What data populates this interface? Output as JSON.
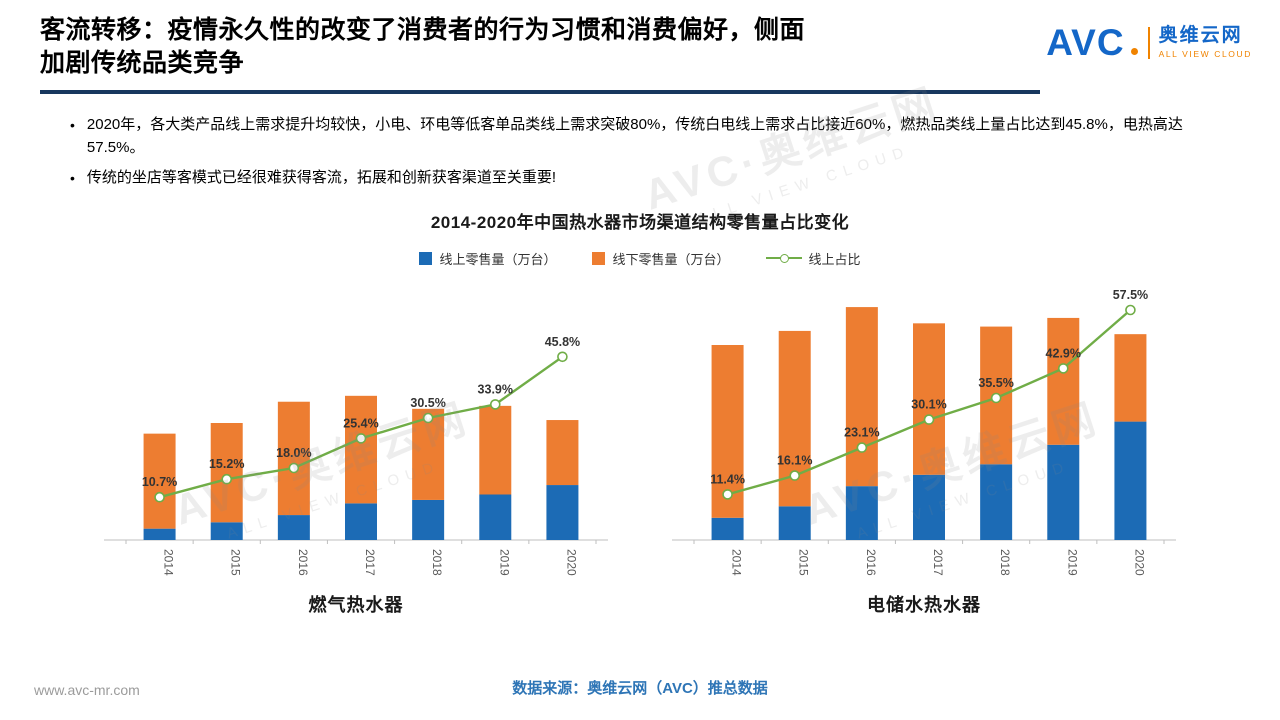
{
  "slide": {
    "title_line1": "客流转移：疫情永久性的改变了消费者的行为习惯和消费偏好，侧面",
    "title_line2": "加剧传统品类竞争",
    "bullets": [
      "2020年，各大类产品线上需求提升均较快，小电、环电等低客单品类线上需求突破80%，传统白电线上需求占比接近60%，燃热品类线上量占比达到45.8%，电热高达57.5%。",
      "传统的坐店等客模式已经很难获得客流，拓展和创新获客渠道至关重要!"
    ],
    "footer_url": "www.avc-mr.com",
    "source_note": "数据来源：奥维云网（AVC）推总数据"
  },
  "logo": {
    "abbr": "AVC",
    "cn": "奥维云网",
    "en": "ALL VIEW CLOUD"
  },
  "watermark": {
    "main": "AVC·奥维云网",
    "sub": "ALL VIEW CLOUD"
  },
  "colors": {
    "online_blue": "#1C6BB5",
    "offline_orange": "#ED7D31",
    "ratio_green": "#70AD47",
    "title_underline": "#17375E",
    "source_blue": "#2E75B6"
  },
  "chart": {
    "title": "2014-2020年中国热水器市场渠道结构零售量占比变化",
    "legend": [
      {
        "label": "线上零售量（万台）",
        "color": "#1C6BB5",
        "type": "square"
      },
      {
        "label": "线下零售量（万台）",
        "color": "#ED7D31",
        "type": "square"
      },
      {
        "label": "线上占比",
        "color": "#70AD47",
        "type": "line"
      }
    ]
  },
  "chart_data": [
    {
      "type": "bar-line",
      "title": "燃气热水器",
      "categories": [
        "2014",
        "2015",
        "2016",
        "2017",
        "2018",
        "2019",
        "2020"
      ],
      "series": [
        {
          "name": "线上零售量（万台）",
          "color": "#1C6BB5",
          "values": [
            96,
            150,
            211,
            310,
            339,
            385,
            465
          ]
        },
        {
          "name": "线下零售量（万台）",
          "color": "#ED7D31",
          "values": [
            804,
            840,
            959,
            910,
            771,
            750,
            550
          ]
        }
      ],
      "line": {
        "name": "线上占比",
        "color": "#70AD47",
        "values": [
          10.7,
          15.2,
          18.0,
          25.4,
          30.5,
          33.9,
          45.8
        ],
        "labels": [
          "10.7%",
          "15.2%",
          "18.0%",
          "25.4%",
          "30.5%",
          "33.9%",
          "45.8%"
        ]
      },
      "ylim": [
        0,
        2200
      ],
      "pct_ylim": [
        0,
        65
      ],
      "grid": false,
      "legend_position": "top"
    },
    {
      "type": "bar-line",
      "title": "电储水热水器",
      "categories": [
        "2014",
        "2015",
        "2016",
        "2017",
        "2018",
        "2019",
        "2020"
      ],
      "series": [
        {
          "name": "线上零售量（万台）",
          "color": "#1C6BB5",
          "values": [
            205,
            311,
            497,
            602,
            699,
            879,
            1093
          ]
        },
        {
          "name": "线下零售量（万台）",
          "color": "#ED7D31",
          "values": [
            1595,
            1619,
            1653,
            1398,
            1271,
            1171,
            807
          ]
        }
      ],
      "line": {
        "name": "线上占比",
        "color": "#70AD47",
        "values": [
          11.4,
          16.1,
          23.1,
          30.1,
          35.5,
          42.9,
          57.5
        ],
        "labels": [
          "11.4%",
          "16.1%",
          "23.1%",
          "30.1%",
          "35.5%",
          "42.9%",
          "57.5%"
        ]
      },
      "ylim": [
        0,
        2400
      ],
      "pct_ylim": [
        0,
        65
      ],
      "grid": false,
      "legend_position": "top"
    }
  ]
}
